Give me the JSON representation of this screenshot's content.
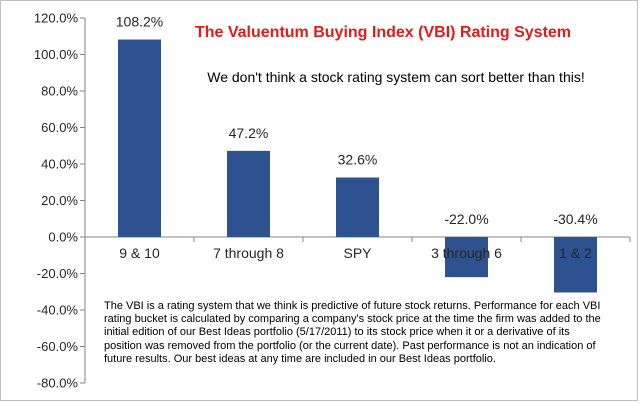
{
  "chart_data": {
    "type": "bar",
    "title": "The Valuentum Buying Index (VBI) Rating System",
    "subtitle": "We don't think a stock rating system can sort better than this!",
    "categories": [
      "9 & 10",
      "7 through 8",
      "SPY",
      "3 through 6",
      "1 & 2"
    ],
    "values": [
      108.2,
      47.2,
      32.6,
      -22.0,
      -30.4
    ],
    "data_labels": [
      "108.2%",
      "47.2%",
      "32.6%",
      "-22.0%",
      "-30.4%"
    ],
    "ylim": [
      -80,
      120
    ],
    "yticks": [
      120,
      100,
      80,
      60,
      40,
      20,
      0,
      -20,
      -40,
      -60,
      -80
    ],
    "ytick_labels": [
      "120.0%",
      "100.0%",
      "80.0%",
      "60.0%",
      "40.0%",
      "20.0%",
      "0.0%",
      "-20.0%",
      "-40.0%",
      "-60.0%",
      "-80.0%"
    ],
    "bar_color": "#2e528f",
    "grid": false,
    "legend": "none"
  },
  "footnote": "The VBI is a rating system that we think is predictive of future stock returns. Performance for each VBI rating bucket is calculated by comparing a company's stock price at the time the firm was added to the initial edition of our Best Ideas portfolio (5/17/2011) to its stock price when it or a derivative of its position was removed from the portfolio (or the current date). Past performance is not an indication of future results. Our best ideas at any time are included in our Best Ideas portfolio."
}
